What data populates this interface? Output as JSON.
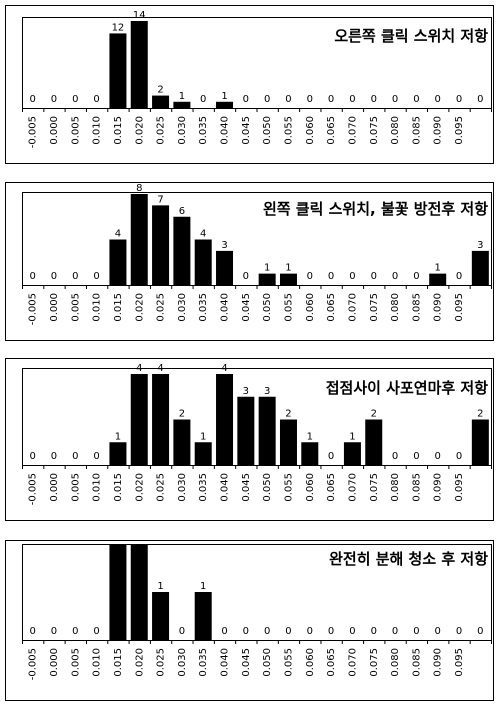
{
  "chart_data": [
    {
      "type": "bar",
      "title": "오른쪽 클릭 스위치 저항",
      "categories": [
        "-0.005",
        "0.000",
        "0.005",
        "0.010",
        "0.015",
        "0.020",
        "0.025",
        "0.030",
        "0.035",
        "0.040",
        "0.045",
        "0.050",
        "0.055",
        "0.060",
        "0.065",
        "0.070",
        "0.075",
        "0.080",
        "0.085",
        "0.090",
        "0.095",
        ""
      ],
      "values": [
        0,
        0,
        0,
        0,
        12,
        14,
        2,
        1,
        0,
        1,
        0,
        0,
        0,
        0,
        0,
        0,
        0,
        0,
        0,
        0,
        0,
        0
      ],
      "ylim": [
        0,
        14
      ],
      "xlabel": "",
      "ylabel": ""
    },
    {
      "type": "bar",
      "title": "왼쪽 클릭 스위치, 불꽃 방전후 저항",
      "categories": [
        "-0.005",
        "0.000",
        "0.005",
        "0.010",
        "0.015",
        "0.020",
        "0.025",
        "0.030",
        "0.035",
        "0.040",
        "0.045",
        "0.050",
        "0.055",
        "0.060",
        "0.065",
        "0.070",
        "0.075",
        "0.080",
        "0.085",
        "0.090",
        "0.095",
        ""
      ],
      "values": [
        0,
        0,
        0,
        0,
        4,
        8,
        7,
        6,
        4,
        3,
        0,
        1,
        1,
        0,
        0,
        0,
        0,
        0,
        0,
        1,
        0,
        3
      ],
      "ylim": [
        0,
        8
      ],
      "xlabel": "",
      "ylabel": ""
    },
    {
      "type": "bar",
      "title": "접점사이 사포연마후 저항",
      "categories": [
        "-0.005",
        "0.000",
        "0.005",
        "0.010",
        "0.015",
        "0.020",
        "0.025",
        "0.030",
        "0.035",
        "0.040",
        "0.045",
        "0.050",
        "0.055",
        "0.060",
        "0.065",
        "0.070",
        "0.075",
        "0.080",
        "0.085",
        "0.090",
        "0.095",
        ""
      ],
      "values": [
        0,
        0,
        0,
        0,
        1,
        4,
        4,
        2,
        1,
        4,
        3,
        3,
        2,
        1,
        0,
        1,
        2,
        0,
        0,
        0,
        0,
        2
      ],
      "ylim": [
        0,
        4
      ],
      "xlabel": "",
      "ylabel": ""
    },
    {
      "type": "bar",
      "title": "완전히 분해 청소 후 저항",
      "categories": [
        "-0.005",
        "0.000",
        "0.005",
        "0.010",
        "0.015",
        "0.020",
        "0.025",
        "0.030",
        "0.035",
        "0.040",
        "0.045",
        "0.050",
        "0.055",
        "0.060",
        "0.065",
        "0.070",
        "0.075",
        "0.080",
        "0.085",
        "0.090",
        "0.095",
        ""
      ],
      "values": [
        0,
        0,
        0,
        0,
        "",
        2,
        1,
        0,
        1,
        0,
        0,
        0,
        0,
        0,
        0,
        0,
        0,
        0,
        0,
        0,
        0,
        0
      ],
      "ylim": [
        0,
        2
      ],
      "xlabel": "",
      "ylabel": ""
    }
  ]
}
